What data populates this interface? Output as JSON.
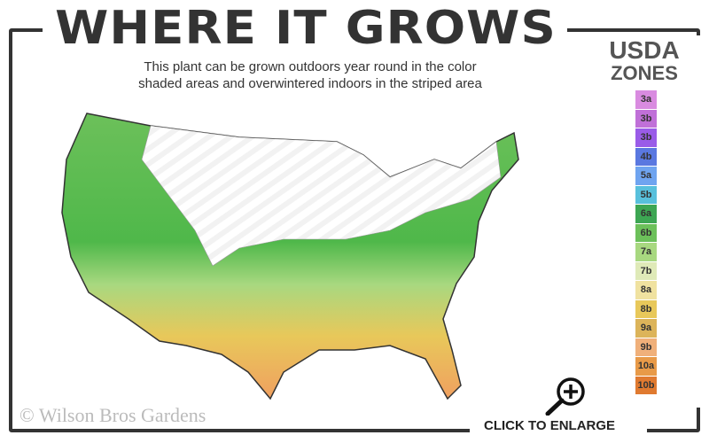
{
  "header": {
    "title": "WHERE IT GROWS",
    "subtitle_line1": "This plant can be grown outdoors year round in the color",
    "subtitle_line2": "shaded areas and overwintered indoors in the striped area"
  },
  "legend": {
    "title_line1": "USDA",
    "title_line2": "ZONES",
    "zones": [
      {
        "label": "3a",
        "color": "#d98be0"
      },
      {
        "label": "3b",
        "color": "#c070d8"
      },
      {
        "label": "3b",
        "color": "#9a5ce8"
      },
      {
        "label": "4b",
        "color": "#5a78e0"
      },
      {
        "label": "5a",
        "color": "#6fa4f0"
      },
      {
        "label": "5b",
        "color": "#58c0dc"
      },
      {
        "label": "6a",
        "color": "#3da653"
      },
      {
        "label": "6b",
        "color": "#6cc05a"
      },
      {
        "label": "7a",
        "color": "#a8d880"
      },
      {
        "label": "7b",
        "color": "#dfeab8"
      },
      {
        "label": "8a",
        "color": "#f0e2a0"
      },
      {
        "label": "8b",
        "color": "#e8c85a"
      },
      {
        "label": "9a",
        "color": "#dcb45a"
      },
      {
        "label": "9b",
        "color": "#f0b07a"
      },
      {
        "label": "10a",
        "color": "#e89a48"
      },
      {
        "label": "10b",
        "color": "#e07a30"
      }
    ]
  },
  "footer": {
    "copyright": "© Wilson Bros Gardens",
    "enlarge_label": "CLICK TO ENLARGE"
  },
  "icons": {
    "enlarge": "magnifier-plus-icon"
  }
}
